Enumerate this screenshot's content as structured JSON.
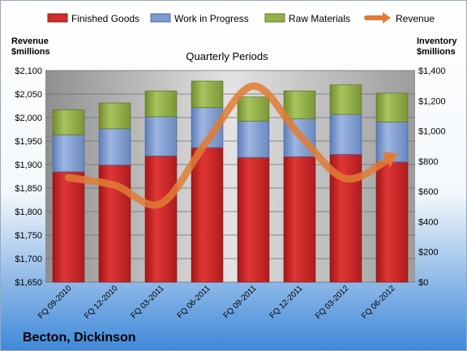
{
  "company": "Becton, Dickinson",
  "chart_data": {
    "type": "bar",
    "title": "Quarterly Periods",
    "categories": [
      "FQ 09-2010",
      "FQ 12-2010",
      "FQ 03-2011",
      "FQ 06-2011",
      "FQ 09-2011",
      "FQ 12-2011",
      "FQ 03-2012",
      "FQ 06-2012"
    ],
    "left_axis": {
      "label_line1": "Revenue",
      "label_line2": "$millions",
      "min": 1650,
      "max": 2100,
      "step": 50,
      "tick_labels": [
        "$1,650",
        "$1,700",
        "$1,750",
        "$1,800",
        "$1,850",
        "$1,900",
        "$1,950",
        "$2,000",
        "$2,050",
        "$2,100"
      ]
    },
    "right_axis": {
      "label_line1": "Inventory",
      "label_line2": "$millions",
      "min": 0,
      "max": 1400,
      "step": 200,
      "tick_labels": [
        "$0",
        "$200",
        "$400",
        "$600",
        "$800",
        "$1,000",
        "$1,200",
        "$1,400"
      ]
    },
    "grid": true,
    "legend_position": "top",
    "stacked": true,
    "series": [
      {
        "name": "Finished Goods",
        "kind": "bar",
        "axis": "right",
        "color": "#d42a2a",
        "values": [
          730,
          775,
          835,
          890,
          825,
          830,
          845,
          795
        ]
      },
      {
        "name": "Work in Progress",
        "kind": "bar",
        "axis": "right",
        "color": "#7b9ad0",
        "values": [
          245,
          240,
          260,
          265,
          240,
          250,
          265,
          265
        ]
      },
      {
        "name": "Raw Materials",
        "kind": "bar",
        "axis": "right",
        "color": "#93b049",
        "values": [
          165,
          170,
          170,
          175,
          160,
          185,
          195,
          190
        ]
      },
      {
        "name": "Revenue",
        "kind": "line",
        "axis": "left",
        "color": "#e07b35",
        "values": [
          1872,
          1856,
          1817,
          1950,
          2067,
          1963,
          1870,
          1917
        ]
      }
    ]
  }
}
